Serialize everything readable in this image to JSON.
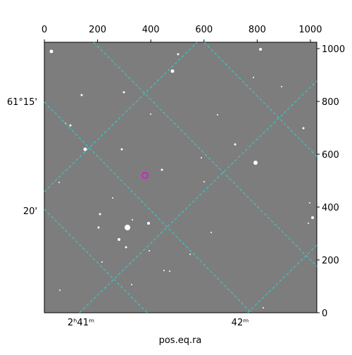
{
  "chart_data": {
    "type": "image",
    "xlabel": "pos.eq.ra",
    "xlim": [
      0,
      1024
    ],
    "ylim": [
      0,
      1024
    ],
    "xticks": [
      0,
      200,
      400,
      600,
      800,
      1000
    ],
    "yticks": [
      0,
      200,
      400,
      600,
      800,
      1000
    ],
    "ra_labels": [
      "2ʰ41ᵐ",
      "42ᵐ"
    ],
    "dec_labels": [
      "61°15'",
      "20'"
    ]
  }
}
